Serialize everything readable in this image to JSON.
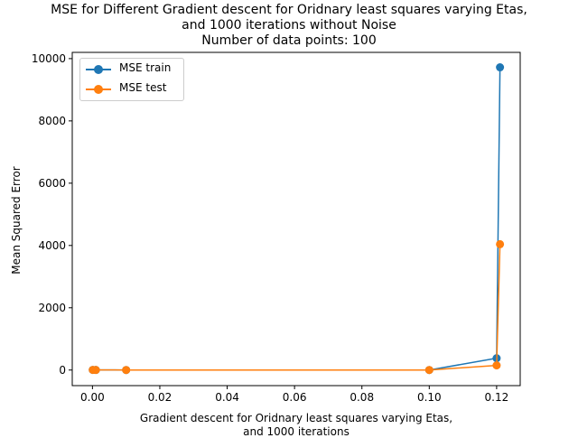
{
  "chart_data": {
    "type": "line",
    "title_lines": [
      "MSE for Different Gradient descent for Oridnary least squares varying Etas,",
      "and 1000 iterations without Noise",
      "Number of data points: 100"
    ],
    "xlabel_lines": [
      "Gradient descent for Oridnary least squares varying Etas,",
      "and 1000 iterations"
    ],
    "ylabel": "Mean Squared Error",
    "xlim": [
      -0.006,
      0.127
    ],
    "ylim": [
      -500,
      10200
    ],
    "xticks": [
      0.0,
      0.02,
      0.04,
      0.06,
      0.08,
      0.1,
      0.12
    ],
    "xtick_labels": [
      "0.00",
      "0.02",
      "0.04",
      "0.06",
      "0.08",
      "0.10",
      "0.12"
    ],
    "yticks": [
      0,
      2000,
      4000,
      6000,
      8000,
      10000
    ],
    "ytick_labels": [
      "0",
      "2000",
      "4000",
      "6000",
      "8000",
      "10000"
    ],
    "x": [
      0.0001,
      0.001,
      0.01,
      0.1,
      0.12,
      0.121
    ],
    "series": [
      {
        "name": "MSE train",
        "color": "#1f77b4",
        "values": [
          5,
          3,
          2,
          1,
          380,
          9720
        ]
      },
      {
        "name": "MSE test",
        "color": "#ff7f0e",
        "values": [
          5,
          3,
          2,
          1,
          150,
          4040
        ]
      }
    ],
    "legend_position": "upper-left",
    "grid": false
  }
}
